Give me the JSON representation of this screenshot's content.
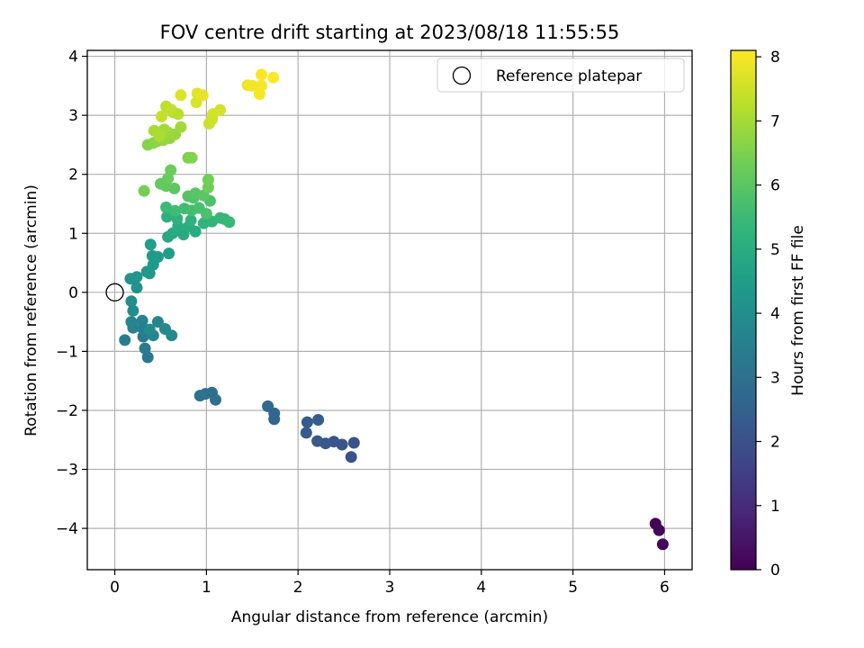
{
  "chart_data": {
    "type": "scatter",
    "title": "FOV centre drift starting at 2023/08/18 11:55:55",
    "xlabel": "Angular distance from reference (arcmin)",
    "ylabel": "Rotation from reference (arcmin)",
    "xlim": [
      -0.3,
      6.3
    ],
    "ylim": [
      -4.7,
      4.1
    ],
    "x_ticks": [
      0,
      1,
      2,
      3,
      4,
      5,
      6
    ],
    "y_ticks": [
      -4,
      -3,
      -2,
      -1,
      0,
      1,
      2,
      3,
      4
    ],
    "grid": true,
    "legend": {
      "placement": "top-right",
      "entries": [
        "Reference platepar"
      ]
    },
    "reference_point": {
      "name": "Reference platepar",
      "x": 0,
      "y": 0
    },
    "colorbar": {
      "label": "Hours from first FF file",
      "range": [
        0,
        8.1
      ],
      "ticks": [
        0,
        1,
        2,
        3,
        4,
        5,
        6,
        7,
        8
      ],
      "colormap": "viridis"
    },
    "points": [
      [
        5.9,
        -3.92,
        0.05
      ],
      [
        5.94,
        -4.03,
        0.1
      ],
      [
        5.98,
        -4.27,
        0.15
      ],
      [
        2.58,
        -2.79,
        2.0
      ],
      [
        2.61,
        -2.55,
        2.05
      ],
      [
        2.48,
        -2.58,
        2.1
      ],
      [
        2.39,
        -2.53,
        2.15
      ],
      [
        2.3,
        -2.56,
        2.2
      ],
      [
        2.21,
        -2.52,
        2.25
      ],
      [
        2.09,
        -2.38,
        2.3
      ],
      [
        2.1,
        -2.2,
        2.35
      ],
      [
        2.22,
        -2.16,
        2.4
      ],
      [
        1.74,
        -2.15,
        2.6
      ],
      [
        1.74,
        -2.05,
        2.65
      ],
      [
        1.67,
        -1.93,
        2.7
      ],
      [
        1.1,
        -1.82,
        2.9
      ],
      [
        1.06,
        -1.7,
        2.95
      ],
      [
        0.99,
        -1.72,
        3.0
      ],
      [
        0.93,
        -1.75,
        3.05
      ],
      [
        0.36,
        -1.1,
        3.3
      ],
      [
        0.33,
        -0.95,
        3.35
      ],
      [
        0.31,
        -0.75,
        3.4
      ],
      [
        0.31,
        -0.62,
        3.45
      ],
      [
        0.11,
        -0.81,
        3.5
      ],
      [
        0.2,
        -0.6,
        3.55
      ],
      [
        0.3,
        -0.48,
        3.6
      ],
      [
        0.18,
        -0.5,
        3.65
      ],
      [
        0.42,
        -0.73,
        3.7
      ],
      [
        0.47,
        -0.5,
        3.75
      ],
      [
        0.55,
        -0.62,
        3.8
      ],
      [
        0.62,
        -0.73,
        3.85
      ],
      [
        0.38,
        -0.63,
        3.9
      ],
      [
        0.2,
        -0.31,
        3.95
      ],
      [
        0.18,
        -0.15,
        4.0
      ],
      [
        0.24,
        0.08,
        4.1
      ],
      [
        0.17,
        0.23,
        4.15
      ],
      [
        0.24,
        0.26,
        4.2
      ],
      [
        0.35,
        0.35,
        4.25
      ],
      [
        0.38,
        0.32,
        4.3
      ],
      [
        0.42,
        0.47,
        4.35
      ],
      [
        0.41,
        0.62,
        4.4
      ],
      [
        0.47,
        0.6,
        4.45
      ],
      [
        0.39,
        0.81,
        4.5
      ],
      [
        0.59,
        0.66,
        4.55
      ],
      [
        0.58,
        0.94,
        4.8
      ],
      [
        0.63,
        1.0,
        4.85
      ],
      [
        0.75,
        0.98,
        4.9
      ],
      [
        0.88,
        1.03,
        4.95
      ],
      [
        0.69,
        1.12,
        5.0
      ],
      [
        0.81,
        1.12,
        5.05
      ],
      [
        0.57,
        1.28,
        5.1
      ],
      [
        0.68,
        1.25,
        5.15
      ],
      [
        0.83,
        1.22,
        5.2
      ],
      [
        0.97,
        1.17,
        5.25
      ],
      [
        1.06,
        1.2,
        5.3
      ],
      [
        1.15,
        1.26,
        5.35
      ],
      [
        1.2,
        1.24,
        5.4
      ],
      [
        1.25,
        1.19,
        5.45
      ],
      [
        0.56,
        1.44,
        5.5
      ],
      [
        0.66,
        1.38,
        5.55
      ],
      [
        0.76,
        1.42,
        5.6
      ],
      [
        0.84,
        1.39,
        5.65
      ],
      [
        0.92,
        1.43,
        5.7
      ],
      [
        1.0,
        1.33,
        5.75
      ],
      [
        1.04,
        1.55,
        5.8
      ],
      [
        0.86,
        1.6,
        5.85
      ],
      [
        0.8,
        1.63,
        5.9
      ],
      [
        0.88,
        1.68,
        5.95
      ],
      [
        0.97,
        1.64,
        6.0
      ],
      [
        0.65,
        1.76,
        6.05
      ],
      [
        0.56,
        1.8,
        6.1
      ],
      [
        0.5,
        1.84,
        6.15
      ],
      [
        0.58,
        1.93,
        6.2
      ],
      [
        0.61,
        2.07,
        6.25
      ],
      [
        1.02,
        1.78,
        6.3
      ],
      [
        1.02,
        1.91,
        6.35
      ],
      [
        0.32,
        1.72,
        6.4
      ],
      [
        0.8,
        2.28,
        6.5
      ],
      [
        0.84,
        2.28,
        6.55
      ],
      [
        0.36,
        2.5,
        6.6
      ],
      [
        0.42,
        2.53,
        6.65
      ],
      [
        0.46,
        2.56,
        6.7
      ],
      [
        0.53,
        2.58,
        6.75
      ],
      [
        0.6,
        2.61,
        6.8
      ],
      [
        0.66,
        2.68,
        6.85
      ],
      [
        0.58,
        2.71,
        6.9
      ],
      [
        0.72,
        2.8,
        6.95
      ],
      [
        0.54,
        2.76,
        7.0
      ],
      [
        0.43,
        2.74,
        7.05
      ],
      [
        0.49,
        2.65,
        7.1
      ],
      [
        0.64,
        3.05,
        7.2
      ],
      [
        0.69,
        3.02,
        7.25
      ],
      [
        0.56,
        3.15,
        7.3
      ],
      [
        0.61,
        3.1,
        7.35
      ],
      [
        0.51,
        2.98,
        7.4
      ],
      [
        1.03,
        2.86,
        7.45
      ],
      [
        1.06,
        2.93,
        7.5
      ],
      [
        1.07,
        3.02,
        7.55
      ],
      [
        1.15,
        3.09,
        7.6
      ],
      [
        0.89,
        3.22,
        7.65
      ],
      [
        0.72,
        3.34,
        7.7
      ],
      [
        0.9,
        3.37,
        7.75
      ],
      [
        0.96,
        3.34,
        7.8
      ],
      [
        1.45,
        3.51,
        7.9
      ],
      [
        1.5,
        3.5,
        7.95
      ],
      [
        1.58,
        3.36,
        8.0
      ],
      [
        1.6,
        3.5,
        8.02
      ],
      [
        1.6,
        3.69,
        8.05
      ],
      [
        1.73,
        3.64,
        8.08
      ]
    ]
  }
}
